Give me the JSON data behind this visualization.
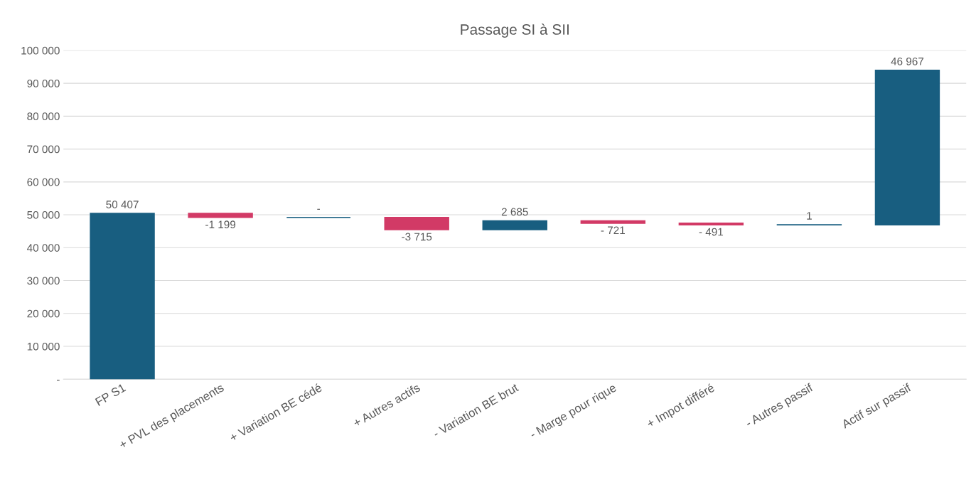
{
  "chart_data": {
    "type": "bar",
    "title": "Passage SI à SII",
    "categories": [
      "FP S1",
      "+ PVL des placements",
      "+ Variation BE cédé",
      "+ Autres actifs",
      "- Variation BE brut",
      "- Marge pour rique",
      "+ Impot différé",
      "- Autres passif",
      "Actif sur passif"
    ],
    "values": [
      50407,
      -1199,
      0,
      -3715,
      2685,
      -721,
      -491,
      1,
      46967
    ],
    "base": [
      0,
      50407,
      49208,
      49208,
      45493,
      48178,
      47457,
      46966,
      46967
    ],
    "colors": [
      "#185e80",
      "#d23a66",
      "#185e80",
      "#d23a66",
      "#185e80",
      "#d23a66",
      "#d23a66",
      "#185e80",
      "#185e80"
    ],
    "value_labels": [
      "50 407",
      "-1 199",
      "-",
      "-3 715",
      "2 685",
      "- 721",
      "- 491",
      "1",
      "46 967"
    ],
    "ylim": [
      0,
      100000
    ],
    "yticks": [
      {
        "value": 0,
        "label": "-"
      },
      {
        "value": 10000,
        "label": "10 000"
      },
      {
        "value": 20000,
        "label": "20 000"
      },
      {
        "value": 30000,
        "label": "30 000"
      },
      {
        "value": 40000,
        "label": "40 000"
      },
      {
        "value": 50000,
        "label": "50 000"
      },
      {
        "value": 60000,
        "label": "60 000"
      },
      {
        "value": 70000,
        "label": "70 000"
      },
      {
        "value": 80000,
        "label": "80 000"
      },
      {
        "value": 90000,
        "label": "90 000"
      },
      {
        "value": 100000,
        "label": "100 000"
      }
    ],
    "grid": "y"
  }
}
